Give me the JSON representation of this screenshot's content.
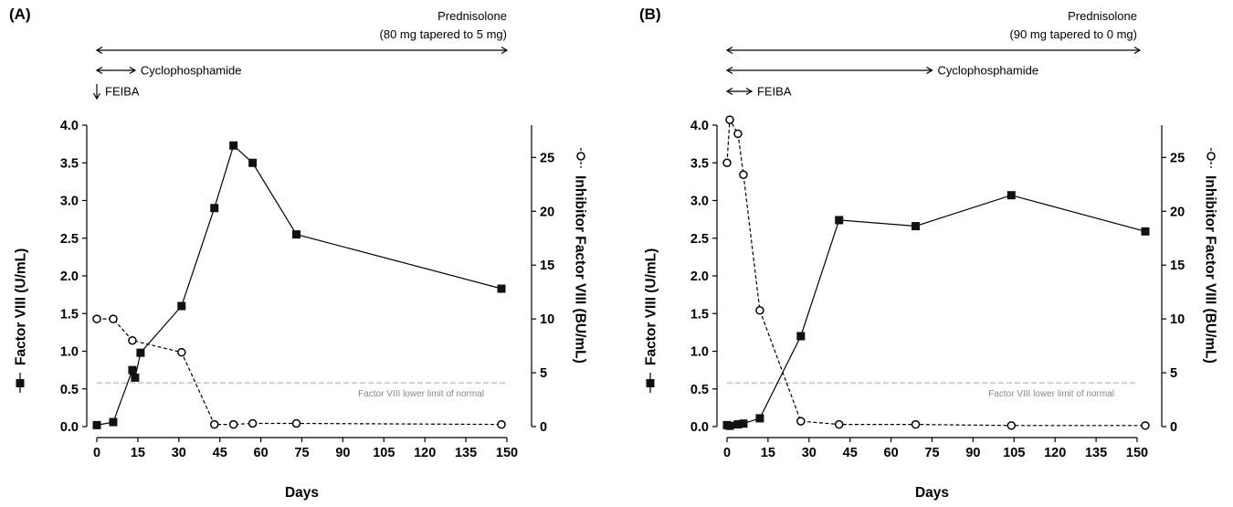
{
  "chart_data": [
    {
      "type": "line",
      "panel_label": "(A)",
      "xlabel": "Days",
      "ylabel_left": "Factor VIII (U/mL)",
      "ylabel_right": "Inhibitor Factor VIII (BU/mL)",
      "xlim": [
        0,
        150
      ],
      "x_ticks": [
        0,
        15,
        30,
        45,
        60,
        75,
        90,
        105,
        120,
        135,
        150
      ],
      "ylim_left": [
        0,
        4.0
      ],
      "y_ticks_left": [
        "0.0",
        "0.5",
        "1.0",
        "1.5",
        "2.0",
        "2.5",
        "3.0",
        "3.5",
        "4.0"
      ],
      "ylim_right": [
        0,
        28
      ],
      "y_ticks_right": [
        0,
        5,
        10,
        15,
        20,
        25
      ],
      "series": [
        {
          "axis": "left",
          "marker": "square",
          "line": "solid",
          "x": [
            0,
            6,
            13,
            14,
            16,
            31,
            43,
            50,
            57,
            73,
            148
          ],
          "y": [
            0.02,
            0.06,
            0.75,
            0.65,
            0.98,
            1.6,
            2.9,
            3.73,
            3.5,
            2.55,
            1.83
          ]
        },
        {
          "axis": "right",
          "marker": "circle",
          "line": "dashed",
          "x": [
            0,
            6,
            13,
            31,
            43,
            50,
            57,
            73,
            148
          ],
          "y": [
            10,
            10,
            8,
            6.9,
            0.2,
            0.2,
            0.3,
            0.3,
            0.2
          ]
        }
      ],
      "reference_line": {
        "y": 0.58,
        "label": "Factor VIII lower limit of normal"
      },
      "treatments": [
        {
          "label": "Prednisolone",
          "sublabel": "(80 mg tapered to 5 mg)",
          "start": 0,
          "end": 150,
          "kind": "range"
        },
        {
          "label": "Cyclophosphamide",
          "start": 0,
          "end": 14,
          "kind": "range"
        },
        {
          "label": "FEIBA",
          "start": 0,
          "end": 0,
          "kind": "point"
        }
      ]
    },
    {
      "type": "line",
      "panel_label": "(B)",
      "xlabel": "Days",
      "ylabel_left": "Factor VIII (U/mL)",
      "ylabel_right": "Inhibitor Factor VIII (BU/mL)",
      "xlim": [
        0,
        150
      ],
      "x_ticks": [
        0,
        15,
        30,
        45,
        60,
        75,
        90,
        105,
        120,
        135,
        150
      ],
      "ylim_left": [
        0,
        4.0
      ],
      "y_ticks_left": [
        "0.0",
        "0.5",
        "1.0",
        "1.5",
        "2.0",
        "2.5",
        "3.0",
        "3.5",
        "4.0"
      ],
      "ylim_right": [
        0,
        28
      ],
      "y_ticks_right": [
        0,
        5,
        10,
        15,
        20,
        25
      ],
      "series": [
        {
          "axis": "left",
          "marker": "square",
          "line": "solid",
          "x": [
            0,
            1,
            4,
            6,
            12,
            27,
            41,
            69,
            104,
            153
          ],
          "y": [
            0.02,
            0.01,
            0.03,
            0.04,
            0.11,
            1.2,
            2.74,
            2.66,
            3.07,
            2.59
          ]
        },
        {
          "axis": "right",
          "marker": "circle",
          "line": "dashed",
          "x": [
            0,
            1,
            4,
            6,
            12,
            27,
            41,
            69,
            104,
            153
          ],
          "y": [
            24.5,
            28.5,
            27.2,
            23.4,
            10.8,
            0.5,
            0.2,
            0.2,
            0.1,
            0.1
          ]
        }
      ],
      "reference_line": {
        "y": 0.58,
        "label": "Factor VIII lower limit of normal"
      },
      "treatments": [
        {
          "label": "Prednisolone",
          "sublabel": "(90 mg tapered to 0 mg)",
          "start": 0,
          "end": 155,
          "kind": "range"
        },
        {
          "label": "Cyclophosphamide",
          "start": 0,
          "end": 75,
          "kind": "range"
        },
        {
          "label": "FEIBA",
          "start": 0,
          "end": 9,
          "kind": "range"
        }
      ]
    }
  ]
}
